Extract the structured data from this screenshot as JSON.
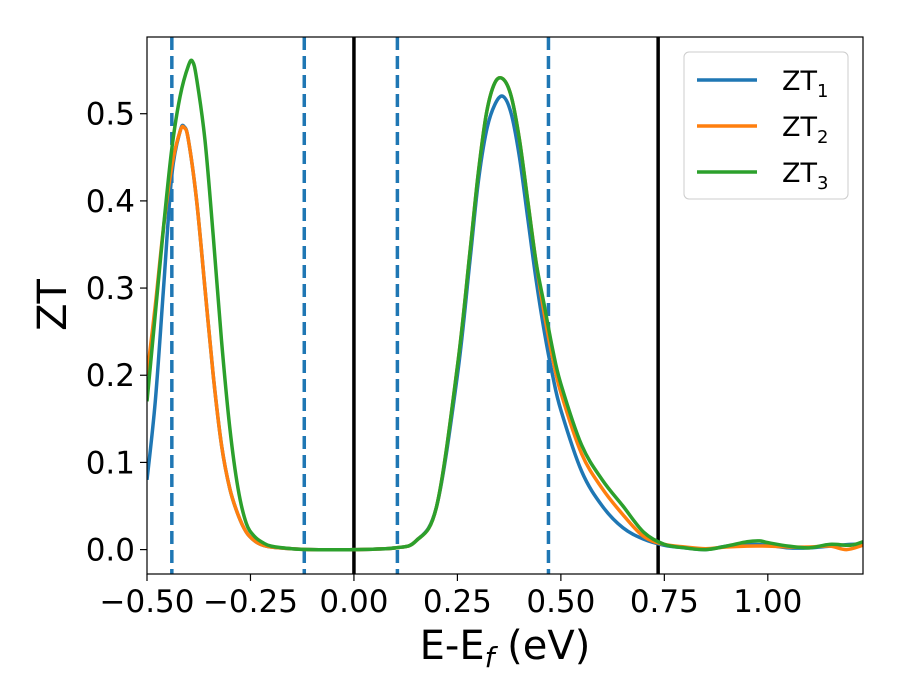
{
  "chart_data": {
    "type": "line",
    "xlabel": {
      "base": "E-E",
      "sub": "f",
      "rest": " (eV)"
    },
    "ylabel": "ZT",
    "xlim": [
      -0.5,
      1.23
    ],
    "ylim": [
      -0.028,
      0.588
    ],
    "xticks": [
      -0.5,
      -0.25,
      0.0,
      0.25,
      0.5,
      0.75,
      1.0
    ],
    "xtick_labels": [
      "−0.50",
      "−0.25",
      "0.00",
      "0.25",
      "0.50",
      "0.75",
      "1.00"
    ],
    "yticks": [
      0.0,
      0.1,
      0.2,
      0.3,
      0.4,
      0.5
    ],
    "ytick_labels": [
      "0.0",
      "0.1",
      "0.2",
      "0.3",
      "0.4",
      "0.5"
    ],
    "grid": false,
    "legend_position": "top-right",
    "vlines": [
      {
        "x": -0.44,
        "style": "dashed",
        "color": "#1f77b4"
      },
      {
        "x": -0.12,
        "style": "dashed",
        "color": "#1f77b4"
      },
      {
        "x": 0.0,
        "style": "solid",
        "color": "#000000"
      },
      {
        "x": 0.105,
        "style": "dashed",
        "color": "#1f77b4"
      },
      {
        "x": 0.47,
        "style": "dashed",
        "color": "#1f77b4"
      },
      {
        "x": 0.735,
        "style": "solid",
        "color": "#000000"
      }
    ],
    "series": [
      {
        "name": "ZT",
        "sub": "1",
        "color": "#1f77b4",
        "x": [
          -0.5,
          -0.48,
          -0.46,
          -0.44,
          -0.42,
          -0.41,
          -0.4,
          -0.38,
          -0.36,
          -0.34,
          -0.32,
          -0.3,
          -0.28,
          -0.26,
          -0.24,
          -0.22,
          -0.2,
          -0.15,
          -0.1,
          0.0,
          0.1,
          0.15,
          0.2,
          0.25,
          0.28,
          0.3,
          0.32,
          0.34,
          0.36,
          0.38,
          0.4,
          0.42,
          0.44,
          0.46,
          0.48,
          0.5,
          0.55,
          0.6,
          0.65,
          0.7,
          0.75,
          0.8,
          0.85,
          0.9,
          0.95,
          1.0,
          1.05,
          1.1,
          1.15,
          1.2,
          1.23
        ],
        "y": [
          0.08,
          0.17,
          0.3,
          0.43,
          0.48,
          0.485,
          0.47,
          0.4,
          0.3,
          0.2,
          0.12,
          0.07,
          0.04,
          0.02,
          0.01,
          0.005,
          0.003,
          0.001,
          0.0,
          0.0,
          0.002,
          0.01,
          0.05,
          0.2,
          0.33,
          0.42,
          0.48,
          0.51,
          0.52,
          0.5,
          0.45,
          0.38,
          0.31,
          0.25,
          0.2,
          0.16,
          0.09,
          0.05,
          0.025,
          0.012,
          0.005,
          0.002,
          0.0,
          0.004,
          0.006,
          0.005,
          0.002,
          0.002,
          0.004,
          0.006,
          0.006
        ]
      },
      {
        "name": "ZT",
        "sub": "2",
        "color": "#ff7f0e",
        "x": [
          -0.5,
          -0.48,
          -0.46,
          -0.44,
          -0.42,
          -0.41,
          -0.4,
          -0.38,
          -0.36,
          -0.34,
          -0.32,
          -0.3,
          -0.28,
          -0.26,
          -0.24,
          -0.22,
          -0.2,
          -0.15,
          -0.1,
          0.0,
          0.1,
          0.15,
          0.2,
          0.25,
          0.28,
          0.3,
          0.32,
          0.34,
          0.36,
          0.38,
          0.4,
          0.42,
          0.44,
          0.46,
          0.48,
          0.5,
          0.55,
          0.6,
          0.65,
          0.7,
          0.75,
          0.8,
          0.85,
          0.9,
          0.95,
          1.0,
          1.05,
          1.1,
          1.15,
          1.19,
          1.23
        ],
        "y": [
          0.2,
          0.28,
          0.37,
          0.44,
          0.48,
          0.484,
          0.47,
          0.4,
          0.3,
          0.2,
          0.12,
          0.07,
          0.04,
          0.02,
          0.01,
          0.005,
          0.003,
          0.001,
          0.0,
          0.0,
          0.002,
          0.01,
          0.05,
          0.21,
          0.34,
          0.43,
          0.5,
          0.535,
          0.54,
          0.52,
          0.47,
          0.4,
          0.33,
          0.27,
          0.22,
          0.18,
          0.11,
          0.07,
          0.04,
          0.015,
          0.006,
          0.003,
          0.001,
          0.003,
          0.004,
          0.004,
          0.003,
          0.003,
          0.004,
          0.0,
          0.005
        ]
      },
      {
        "name": "ZT",
        "sub": "3",
        "color": "#2ca02c",
        "x": [
          -0.5,
          -0.48,
          -0.46,
          -0.44,
          -0.42,
          -0.4,
          -0.39,
          -0.38,
          -0.36,
          -0.34,
          -0.32,
          -0.3,
          -0.28,
          -0.26,
          -0.24,
          -0.22,
          -0.2,
          -0.15,
          -0.1,
          0.0,
          0.1,
          0.15,
          0.2,
          0.25,
          0.28,
          0.3,
          0.32,
          0.34,
          0.36,
          0.38,
          0.4,
          0.42,
          0.44,
          0.46,
          0.48,
          0.5,
          0.55,
          0.6,
          0.65,
          0.7,
          0.75,
          0.8,
          0.85,
          0.9,
          0.95,
          0.98,
          1.0,
          1.05,
          1.1,
          1.15,
          1.2,
          1.23
        ],
        "y": [
          0.17,
          0.27,
          0.37,
          0.46,
          0.52,
          0.555,
          0.56,
          0.54,
          0.47,
          0.36,
          0.24,
          0.14,
          0.07,
          0.03,
          0.015,
          0.008,
          0.004,
          0.001,
          0.0,
          0.0,
          0.002,
          0.01,
          0.05,
          0.21,
          0.34,
          0.43,
          0.5,
          0.535,
          0.54,
          0.52,
          0.47,
          0.4,
          0.33,
          0.28,
          0.23,
          0.19,
          0.12,
          0.08,
          0.05,
          0.02,
          0.006,
          0.002,
          0.0,
          0.004,
          0.009,
          0.01,
          0.008,
          0.004,
          0.002,
          0.006,
          0.005,
          0.009
        ]
      }
    ]
  }
}
